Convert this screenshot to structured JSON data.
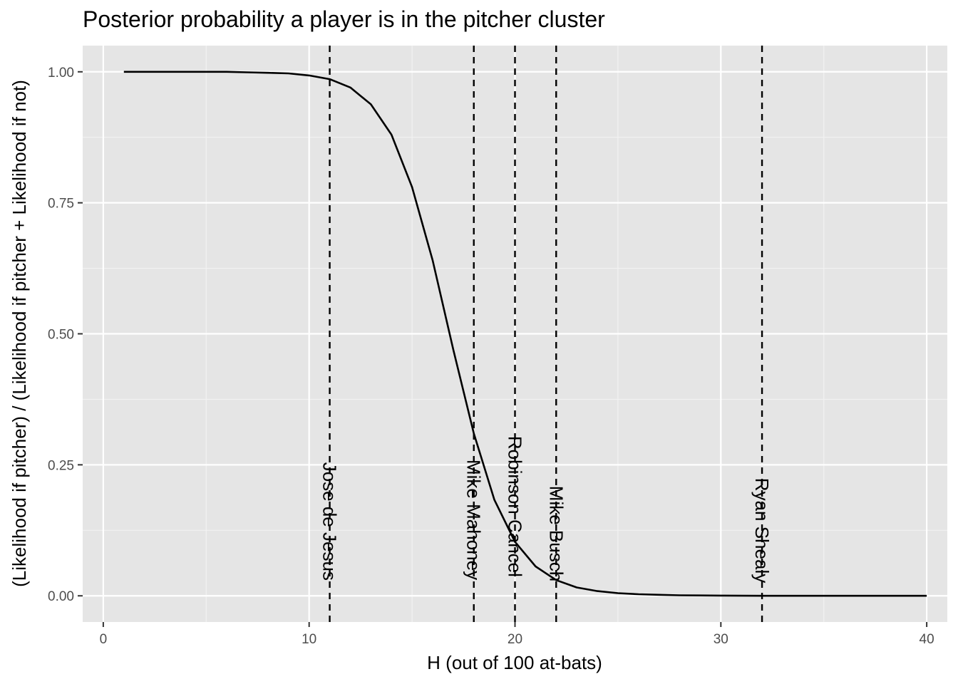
{
  "chart_data": {
    "type": "line",
    "title": "Posterior probability a player is in the pitcher cluster",
    "xlabel": "H (out of 100 at-bats)",
    "ylabel": "(Likelihood if pitcher) / (Likelihood if pitcher + Likelihood if not)",
    "xlim": [
      -1,
      41
    ],
    "ylim": [
      -0.05,
      1.05
    ],
    "x_ticks": [
      0,
      10,
      20,
      30,
      40
    ],
    "x_tick_labels": [
      "0",
      "10",
      "20",
      "30",
      "40"
    ],
    "y_ticks": [
      0,
      0.25,
      0.5,
      0.75,
      1
    ],
    "y_tick_labels": [
      "0.00",
      "0.25",
      "0.50",
      "0.75",
      "1.00"
    ],
    "grid": true,
    "series": [
      {
        "x": [
          1,
          2,
          3,
          4,
          5,
          6,
          7,
          8,
          9,
          10,
          11,
          12,
          13,
          14,
          15,
          16,
          17,
          18,
          19,
          20,
          21,
          22,
          23,
          24,
          25,
          26,
          27,
          28,
          29,
          30,
          31,
          32,
          33,
          34,
          35,
          36,
          37,
          38,
          39,
          40
        ],
        "y": [
          1.0,
          1.0,
          1.0,
          1.0,
          1.0,
          1.0,
          0.999,
          0.998,
          0.997,
          0.993,
          0.986,
          0.97,
          0.938,
          0.88,
          0.78,
          0.64,
          0.47,
          0.31,
          0.183,
          0.103,
          0.056,
          0.03,
          0.016,
          0.009,
          0.005,
          0.003,
          0.002,
          0.001,
          0.0007,
          0.0004,
          0.0002,
          0.0001,
          0.0001,
          0.0,
          0.0,
          0.0,
          0.0,
          0.0,
          0.0,
          0.0
        ]
      }
    ],
    "vlines": [
      {
        "x": 11,
        "label": "Jose de Jesus",
        "label_top_y": 0.255
      },
      {
        "x": 18,
        "label": "Mike Mahoney",
        "label_top_y": 0.26
      },
      {
        "x": 20,
        "label": "Robinson Cancel",
        "label_top_y": 0.305
      },
      {
        "x": 22,
        "label": "Mike Busch",
        "label_top_y": 0.21
      },
      {
        "x": 32,
        "label": "Ryan Shealy",
        "label_top_y": 0.225
      }
    ]
  }
}
